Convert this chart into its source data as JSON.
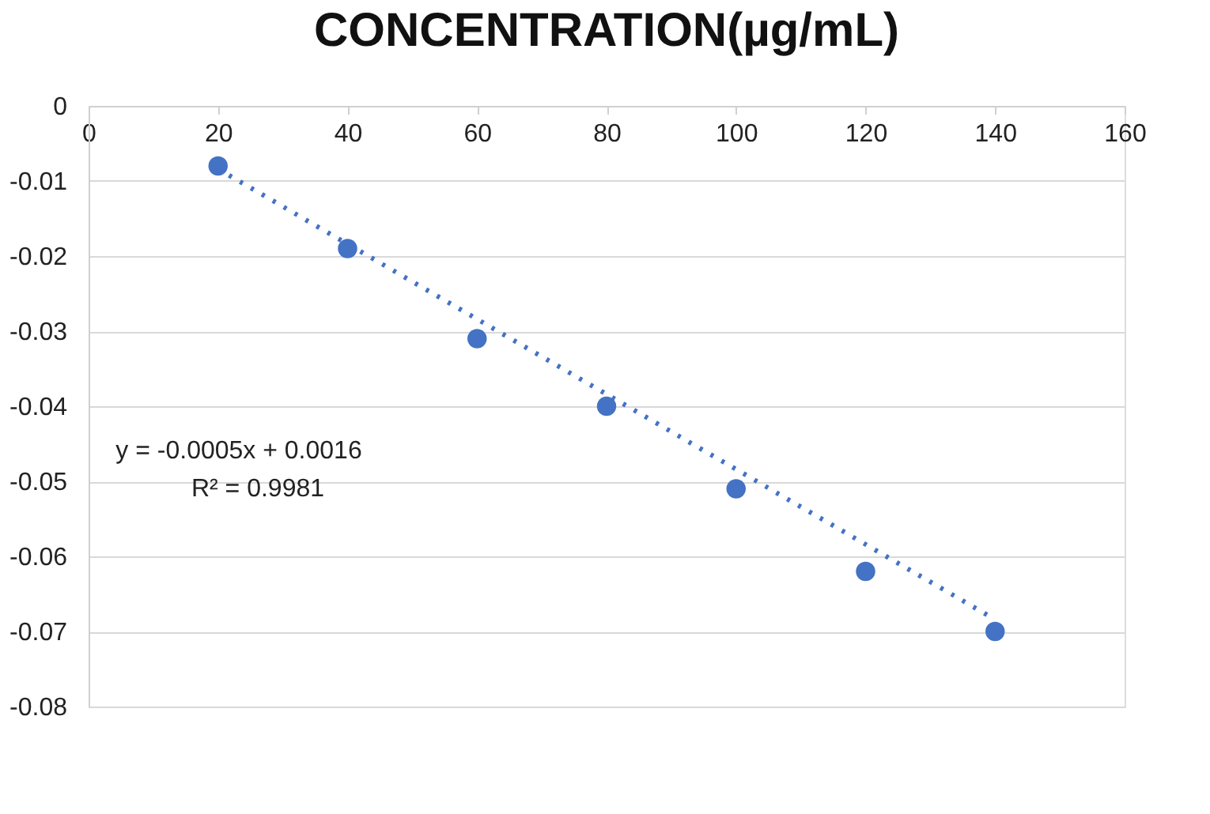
{
  "chart_data": {
    "type": "scatter",
    "title": "CONCENTRATION(µg/mL)",
    "x": [
      20,
      40,
      60,
      80,
      100,
      120,
      140
    ],
    "series": [
      {
        "color": "#4472c4",
        "marker": "circle",
        "values": [
          -0.008,
          -0.019,
          -0.031,
          -0.04,
          -0.051,
          -0.062,
          -0.07
        ]
      },
      {
        "type": "line",
        "color": "#4472c4",
        "line_style": "dotted",
        "x": [
          20,
          140
        ],
        "values": [
          -0.0084,
          -0.0684
        ]
      }
    ],
    "annotations": [
      "y = -0.0005x + 0.0016",
      "R² = 0.9981"
    ],
    "xlim": [
      0,
      160
    ],
    "xticks": [
      0,
      20,
      40,
      60,
      80,
      100,
      120,
      140,
      160
    ],
    "ylim": [
      -0.08,
      0
    ],
    "yticks": [
      0,
      -0.01,
      -0.02,
      -0.03,
      -0.04,
      -0.05,
      -0.06,
      -0.07,
      -0.08
    ],
    "grid": "y",
    "legend": false
  }
}
